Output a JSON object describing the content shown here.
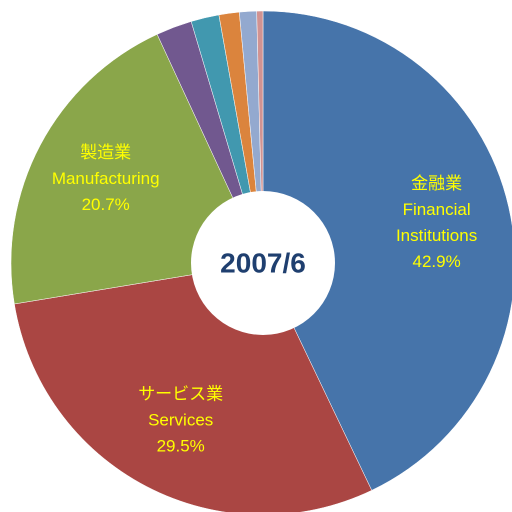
{
  "chart_data": {
    "type": "donut",
    "title": "2007/6",
    "categories": [
      [
        "金融業",
        "Financial",
        "Institutions"
      ],
      [
        "サービス業",
        "Services"
      ],
      [
        "製造業",
        "Manufacturing"
      ],
      null,
      null,
      null,
      null,
      null
    ],
    "values": [
      42.9,
      29.5,
      20.7,
      2.3,
      1.8,
      1.3,
      1.1,
      0.4
    ],
    "value_labels": [
      "42.9%",
      "29.5%",
      "20.7%",
      null,
      null,
      null,
      null,
      null
    ],
    "colors": [
      "#4674aa",
      "#aa4643",
      "#8aa64a",
      "#71588f",
      "#4198af",
      "#db843d",
      "#93a9cf",
      "#d19392"
    ]
  }
}
